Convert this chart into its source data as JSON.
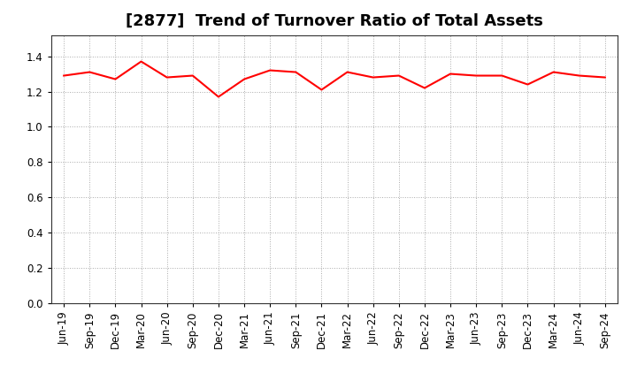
{
  "title": "[2877]  Trend of Turnover Ratio of Total Assets",
  "labels": [
    "Jun-19",
    "Sep-19",
    "Dec-19",
    "Mar-20",
    "Jun-20",
    "Sep-20",
    "Dec-20",
    "Mar-21",
    "Jun-21",
    "Sep-21",
    "Dec-21",
    "Mar-22",
    "Jun-22",
    "Sep-22",
    "Dec-22",
    "Mar-23",
    "Jun-23",
    "Sep-23",
    "Dec-23",
    "Mar-24",
    "Jun-24",
    "Sep-24"
  ],
  "values": [
    1.29,
    1.31,
    1.27,
    1.37,
    1.28,
    1.29,
    1.17,
    1.27,
    1.32,
    1.31,
    1.21,
    1.31,
    1.28,
    1.29,
    1.22,
    1.3,
    1.29,
    1.29,
    1.24,
    1.31,
    1.29,
    1.28
  ],
  "line_color": "#ff0000",
  "line_width": 1.5,
  "ylim": [
    0.0,
    1.52
  ],
  "yticks": [
    0.0,
    0.2,
    0.4,
    0.6,
    0.8,
    1.0,
    1.2,
    1.4
  ],
  "background_color": "#ffffff",
  "grid_color": "#aaaaaa",
  "title_fontsize": 13,
  "tick_fontsize": 8.5
}
